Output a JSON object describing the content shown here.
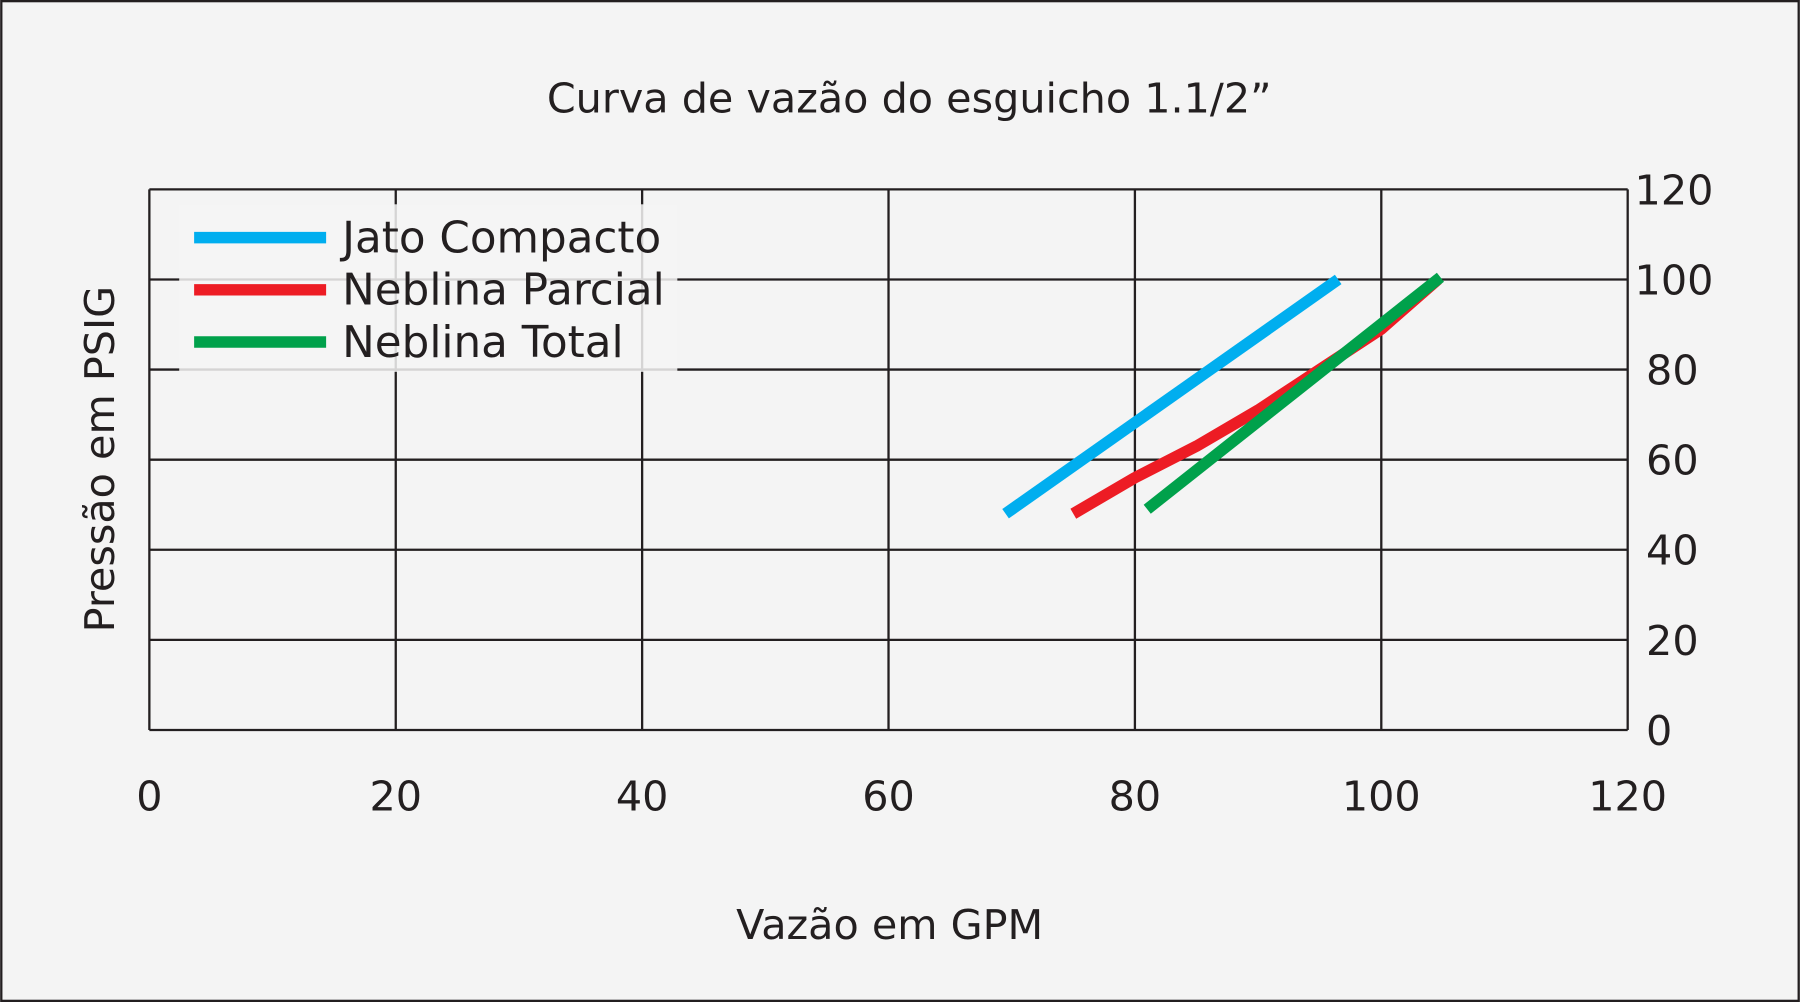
{
  "chart_data": {
    "type": "line",
    "title": "Curva de vazão do esguicho 1.1/2”",
    "xlabel": "Vazão em GPM",
    "ylabel": "Pressão em PSIG",
    "xlim": [
      0,
      120
    ],
    "ylim": [
      0,
      120
    ],
    "xticks": [
      "0",
      "20",
      "40",
      "60",
      "80",
      "100",
      "120"
    ],
    "yticks": [
      "0",
      "20",
      "40",
      "60",
      "80",
      "100",
      "120"
    ],
    "y_axis_side": "right",
    "grid": true,
    "legend_position": "top-left",
    "series": [
      {
        "name": "Jato Compacto",
        "color": "#00aeef",
        "points": [
          [
            69.5,
            48
          ],
          [
            96.5,
            100
          ]
        ]
      },
      {
        "name": "Neblina Parcial",
        "color": "#ed1c24",
        "points": [
          [
            75,
            48
          ],
          [
            80,
            56
          ],
          [
            85,
            63
          ],
          [
            90,
            71
          ],
          [
            95,
            80
          ],
          [
            100,
            89
          ],
          [
            104.6,
            100
          ]
        ]
      },
      {
        "name": "Neblina Total",
        "color": "#00a14b",
        "points": [
          [
            81,
            49
          ],
          [
            104.8,
            100.5
          ]
        ]
      }
    ]
  }
}
